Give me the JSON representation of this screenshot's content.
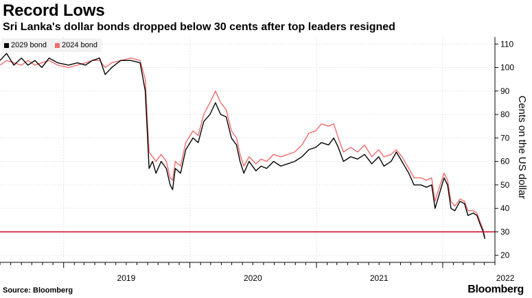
{
  "header": {
    "title": "Record Lows",
    "subtitle": "Sri Lanka's dollar bonds dropped below 30 cents after top leaders resigned"
  },
  "footer": {
    "source": "Source: Bloomberg",
    "brand": "Bloomberg"
  },
  "chart_data": {
    "type": "line",
    "ylabel": "Cents on the US dollar",
    "ylim": [
      17,
      113
    ],
    "xlim": [
      "2018-07-01",
      "2022-06-01"
    ],
    "y_ticks": [
      20,
      30,
      40,
      50,
      60,
      70,
      80,
      90,
      100,
      110
    ],
    "x_ticks": [
      {
        "label": "2019",
        "date": "2019-01-01"
      },
      {
        "label": "2020",
        "date": "2020-01-01"
      },
      {
        "label": "2021",
        "date": "2021-01-01"
      },
      {
        "label": "2022",
        "date": "2022-01-01"
      }
    ],
    "reference_line": {
      "y": 30,
      "color": "#c8102e"
    },
    "legend_position": "top-left",
    "grid": true,
    "series": [
      {
        "name": "2029 bond",
        "color": "#000000",
        "points": [
          [
            "2018-07-01",
            103
          ],
          [
            "2018-07-20",
            106
          ],
          [
            "2018-08-10",
            101
          ],
          [
            "2018-09-01",
            104
          ],
          [
            "2018-09-20",
            101
          ],
          [
            "2018-10-10",
            103
          ],
          [
            "2018-10-30",
            100
          ],
          [
            "2018-11-20",
            104
          ],
          [
            "2018-12-15",
            102
          ],
          [
            "2019-01-15",
            101
          ],
          [
            "2019-02-10",
            102
          ],
          [
            "2019-03-05",
            101
          ],
          [
            "2019-03-25",
            103
          ],
          [
            "2019-04-15",
            104
          ],
          [
            "2019-05-01",
            97
          ],
          [
            "2019-05-20",
            100
          ],
          [
            "2019-06-15",
            103
          ],
          [
            "2019-07-15",
            103
          ],
          [
            "2019-08-10",
            102
          ],
          [
            "2019-08-25",
            90
          ],
          [
            "2019-09-05",
            57
          ],
          [
            "2019-09-15",
            60
          ],
          [
            "2019-09-25",
            55
          ],
          [
            "2019-10-10",
            60
          ],
          [
            "2019-10-25",
            57
          ],
          [
            "2019-11-05",
            50
          ],
          [
            "2019-11-12",
            48
          ],
          [
            "2019-11-20",
            57
          ],
          [
            "2019-12-05",
            55
          ],
          [
            "2019-12-20",
            65
          ],
          [
            "2020-01-10",
            70
          ],
          [
            "2020-01-25",
            68
          ],
          [
            "2020-02-10",
            77
          ],
          [
            "2020-02-28",
            80
          ],
          [
            "2020-03-15",
            85
          ],
          [
            "2020-03-30",
            80
          ],
          [
            "2020-04-15",
            79
          ],
          [
            "2020-04-30",
            70
          ],
          [
            "2020-05-15",
            67
          ],
          [
            "2020-05-25",
            60
          ],
          [
            "2020-06-05",
            55
          ],
          [
            "2020-06-20",
            60
          ],
          [
            "2020-07-10",
            56
          ],
          [
            "2020-07-25",
            58
          ],
          [
            "2020-08-10",
            57
          ],
          [
            "2020-08-30",
            60
          ],
          [
            "2020-09-20",
            58
          ],
          [
            "2020-10-10",
            59
          ],
          [
            "2020-10-30",
            60
          ],
          [
            "2020-11-20",
            62
          ],
          [
            "2020-12-10",
            65
          ],
          [
            "2020-12-30",
            66
          ],
          [
            "2021-01-15",
            68
          ],
          [
            "2021-02-05",
            67
          ],
          [
            "2021-02-20",
            70
          ],
          [
            "2021-03-05",
            66
          ],
          [
            "2021-03-20",
            60
          ],
          [
            "2021-04-10",
            62
          ],
          [
            "2021-04-30",
            61
          ],
          [
            "2021-05-20",
            63
          ],
          [
            "2021-06-10",
            59
          ],
          [
            "2021-06-30",
            62
          ],
          [
            "2021-07-15",
            58
          ],
          [
            "2021-08-05",
            60
          ],
          [
            "2021-08-20",
            64
          ],
          [
            "2021-09-05",
            60
          ],
          [
            "2021-09-25",
            55
          ],
          [
            "2021-10-10",
            50
          ],
          [
            "2021-10-30",
            50
          ],
          [
            "2021-11-15",
            49
          ],
          [
            "2021-11-30",
            50
          ],
          [
            "2021-12-10",
            40
          ],
          [
            "2021-12-20",
            45
          ],
          [
            "2022-01-05",
            53
          ],
          [
            "2022-01-15",
            50
          ],
          [
            "2022-01-25",
            40
          ],
          [
            "2022-02-05",
            39
          ],
          [
            "2022-02-20",
            43
          ],
          [
            "2022-03-05",
            42
          ],
          [
            "2022-03-15",
            37
          ],
          [
            "2022-03-30",
            38
          ],
          [
            "2022-04-10",
            37
          ],
          [
            "2022-04-20",
            33
          ],
          [
            "2022-04-28",
            30
          ],
          [
            "2022-05-01",
            28
          ],
          [
            "2022-05-03",
            27
          ]
        ]
      },
      {
        "name": "2024 bond",
        "color": "#f26b6b",
        "points": [
          [
            "2018-07-01",
            101
          ],
          [
            "2018-07-20",
            103
          ],
          [
            "2018-08-10",
            102
          ],
          [
            "2018-09-01",
            101
          ],
          [
            "2018-09-20",
            103
          ],
          [
            "2018-10-10",
            101
          ],
          [
            "2018-10-30",
            102
          ],
          [
            "2018-11-20",
            103
          ],
          [
            "2018-12-15",
            101
          ],
          [
            "2019-01-15",
            100
          ],
          [
            "2019-02-10",
            101
          ],
          [
            "2019-03-05",
            102
          ],
          [
            "2019-03-25",
            103
          ],
          [
            "2019-04-15",
            103
          ],
          [
            "2019-05-01",
            100
          ],
          [
            "2019-05-20",
            102
          ],
          [
            "2019-06-15",
            103
          ],
          [
            "2019-07-15",
            104
          ],
          [
            "2019-08-10",
            103
          ],
          [
            "2019-08-25",
            95
          ],
          [
            "2019-09-05",
            64
          ],
          [
            "2019-09-15",
            62
          ],
          [
            "2019-09-25",
            60
          ],
          [
            "2019-10-10",
            63
          ],
          [
            "2019-10-25",
            60
          ],
          [
            "2019-11-05",
            53
          ],
          [
            "2019-11-12",
            52
          ],
          [
            "2019-11-20",
            60
          ],
          [
            "2019-12-05",
            58
          ],
          [
            "2019-12-20",
            68
          ],
          [
            "2020-01-10",
            73
          ],
          [
            "2020-01-25",
            71
          ],
          [
            "2020-02-10",
            80
          ],
          [
            "2020-02-28",
            85
          ],
          [
            "2020-03-15",
            90
          ],
          [
            "2020-03-30",
            85
          ],
          [
            "2020-04-15",
            82
          ],
          [
            "2020-04-30",
            73
          ],
          [
            "2020-05-15",
            70
          ],
          [
            "2020-05-25",
            63
          ],
          [
            "2020-06-05",
            58
          ],
          [
            "2020-06-20",
            62
          ],
          [
            "2020-07-10",
            59
          ],
          [
            "2020-07-25",
            61
          ],
          [
            "2020-08-10",
            60
          ],
          [
            "2020-08-30",
            63
          ],
          [
            "2020-09-20",
            62
          ],
          [
            "2020-10-10",
            63
          ],
          [
            "2020-10-30",
            64
          ],
          [
            "2020-11-20",
            67
          ],
          [
            "2020-12-10",
            72
          ],
          [
            "2020-12-30",
            73
          ],
          [
            "2021-01-15",
            76
          ],
          [
            "2021-02-05",
            75
          ],
          [
            "2021-02-20",
            76
          ],
          [
            "2021-03-05",
            70
          ],
          [
            "2021-03-20",
            64
          ],
          [
            "2021-04-10",
            66
          ],
          [
            "2021-04-30",
            64
          ],
          [
            "2021-05-20",
            67
          ],
          [
            "2021-06-10",
            62
          ],
          [
            "2021-06-30",
            65
          ],
          [
            "2021-07-15",
            62
          ],
          [
            "2021-08-05",
            63
          ],
          [
            "2021-08-20",
            65
          ],
          [
            "2021-09-05",
            62
          ],
          [
            "2021-09-25",
            57
          ],
          [
            "2021-10-10",
            53
          ],
          [
            "2021-10-30",
            53
          ],
          [
            "2021-11-15",
            52
          ],
          [
            "2021-11-30",
            53
          ],
          [
            "2021-12-10",
            43
          ],
          [
            "2021-12-20",
            48
          ],
          [
            "2022-01-05",
            55
          ],
          [
            "2022-01-15",
            52
          ],
          [
            "2022-01-25",
            43
          ],
          [
            "2022-02-05",
            41
          ],
          [
            "2022-02-20",
            44
          ],
          [
            "2022-03-05",
            43
          ],
          [
            "2022-03-15",
            39
          ],
          [
            "2022-03-30",
            39
          ],
          [
            "2022-04-10",
            38
          ],
          [
            "2022-04-20",
            34
          ],
          [
            "2022-04-28",
            31
          ],
          [
            "2022-05-01",
            29
          ],
          [
            "2022-05-03",
            28
          ]
        ]
      }
    ]
  }
}
